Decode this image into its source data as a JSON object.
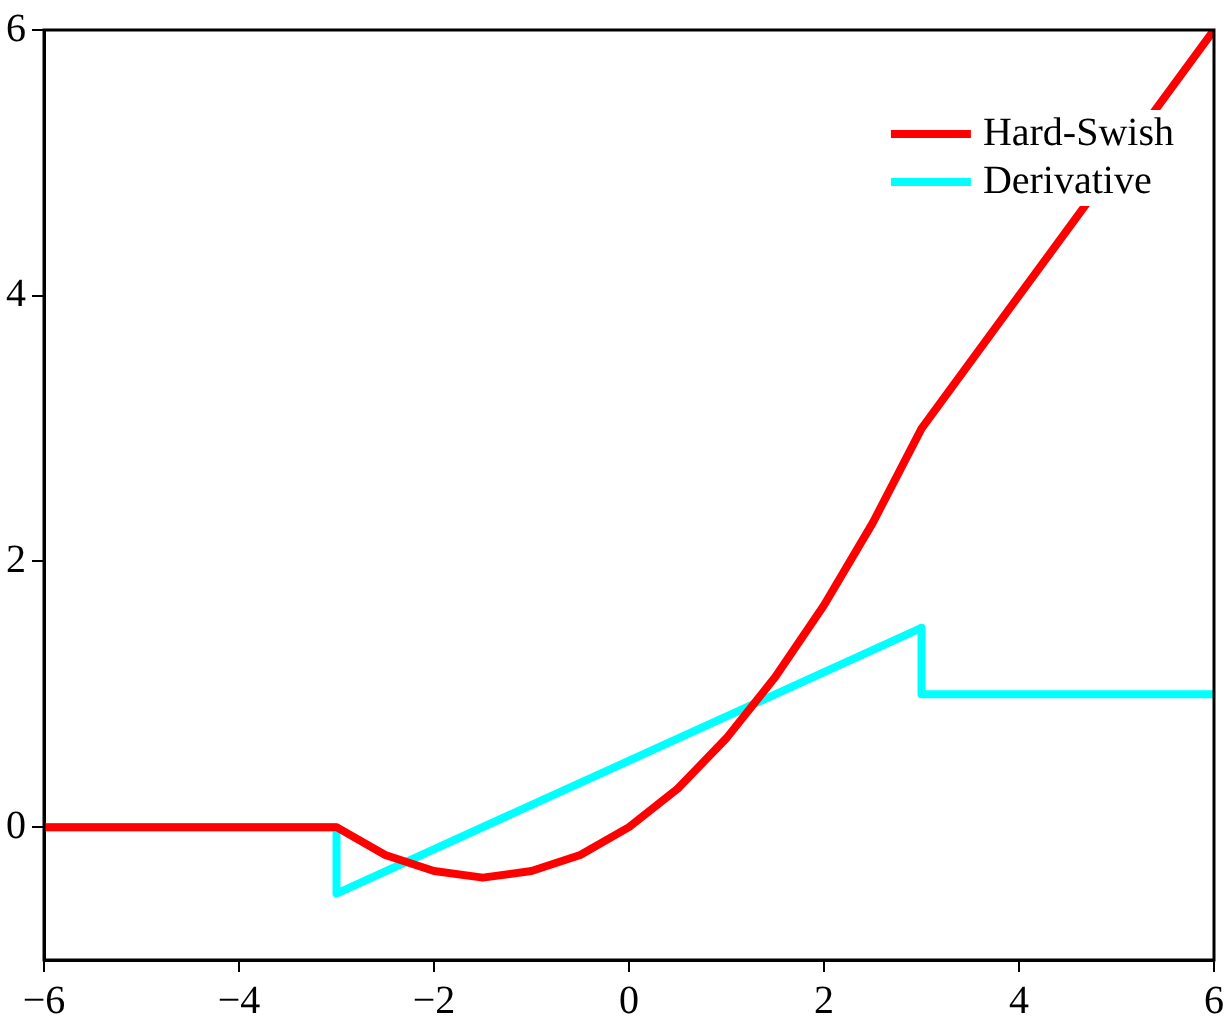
{
  "chart_data": {
    "type": "line",
    "xlim": [
      -6,
      6
    ],
    "xticks": [
      -6,
      -4,
      -2,
      0,
      2,
      4,
      6
    ],
    "ylim": [
      -1,
      6
    ],
    "yticks": [
      0,
      2,
      4,
      6
    ],
    "grid": false,
    "legend": "top right",
    "marker": "none",
    "line_style": "solid",
    "series": [
      {
        "name": "Hard-Swish",
        "color": "#ff0000",
        "x": [
          -6,
          -3,
          -2.5,
          -2,
          -1.5,
          -1,
          -0.5,
          0,
          0.5,
          1,
          1.5,
          2,
          2.5,
          3,
          6
        ],
        "values": [
          0,
          0,
          -0.21,
          -0.33,
          -0.38,
          -0.33,
          -0.21,
          0,
          0.29,
          0.67,
          1.13,
          1.67,
          2.29,
          3,
          6
        ]
      },
      {
        "name": "Derivative",
        "color": "#00ffff",
        "x": [
          -6,
          -3,
          -3,
          3,
          3,
          6
        ],
        "values": [
          0,
          0,
          -0.5,
          1.5,
          1,
          1
        ]
      }
    ]
  }
}
